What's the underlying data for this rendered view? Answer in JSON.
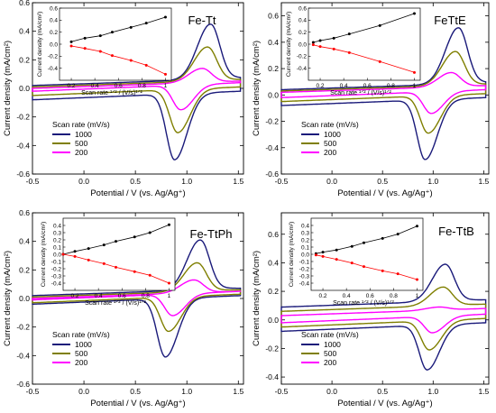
{
  "figure": {
    "colors": {
      "c1000": "#1a1a7a",
      "c500": "#7f7f00",
      "c200": "#ff00ff",
      "inset_black": "#000000",
      "inset_red": "#ff0000"
    }
  },
  "chart_data": [
    {
      "type": "line",
      "title": "Fe-Tt",
      "xlabel": "Potential / V (vs. Ag/Ag⁺)",
      "ylabel": "Current density (mA/cm²)",
      "xlim": [
        -0.5,
        1.55
      ],
      "ylim": [
        -0.6,
        0.6
      ],
      "xticks": [
        "-0.5",
        "0.0",
        "0.5",
        "1.0",
        "1.5"
      ],
      "yticks": [
        "-0.6",
        "-0.4",
        "-0.2",
        "0.0",
        "0.2",
        "0.4",
        "0.6"
      ],
      "legend_title": "Scan rate (mV/s)",
      "legend_position": "bottom-left",
      "series": [
        {
          "name": "1000",
          "color": "#1a1a7a",
          "base_top": 0.02,
          "base_bot": -0.08,
          "anodic_peak": [
            1.23,
            0.45
          ],
          "cathodic_peak": [
            0.88,
            -0.5
          ]
        },
        {
          "name": "500",
          "color": "#7f7f00",
          "base_top": 0.01,
          "base_bot": -0.05,
          "anodic_peak": [
            1.2,
            0.29
          ],
          "cathodic_peak": [
            0.91,
            -0.31
          ]
        },
        {
          "name": "200",
          "color": "#ff00ff",
          "base_top": 0.0,
          "base_bot": -0.02,
          "anodic_peak": [
            1.15,
            0.14
          ],
          "cathodic_peak": [
            0.94,
            -0.15
          ]
        }
      ],
      "inset": {
        "xlabel": "Scan rate ¹ᐟ² / (V/s)¹ᐟ²",
        "ylabel": "Current density (mA/cm²)",
        "xlim": [
          0.1,
          1.05
        ],
        "ylim": [
          -0.6,
          0.6
        ],
        "xticks": [
          "0.2",
          "0.4",
          "0.6",
          "0.8",
          "1"
        ],
        "yticks": [
          "-0.4",
          "-0.2",
          "0.0",
          "0.2",
          "0.4",
          "0.6"
        ],
        "x": [
          0.2,
          0.316,
          0.447,
          0.548,
          0.707,
          0.837,
          1.0
        ],
        "anodic": [
          0.04,
          0.1,
          0.14,
          0.2,
          0.28,
          0.35,
          0.45
        ],
        "cathodic": [
          -0.03,
          -0.07,
          -0.12,
          -0.19,
          -0.27,
          -0.35,
          -0.5
        ]
      }
    },
    {
      "type": "line",
      "title": "FeTtE",
      "xlabel": "Potential / V (vs. Ag/Ag⁺)",
      "ylabel": "Current density (mA/cm²)",
      "xlim": [
        -0.5,
        1.55
      ],
      "ylim": [
        -0.6,
        0.7
      ],
      "xticks": [
        "-0.5",
        "0.0",
        "0.5",
        "1.0",
        "1.5"
      ],
      "yticks": [
        "-0.6",
        "-0.4",
        "-0.2",
        "0.0",
        "0.2",
        "0.4",
        "0.6"
      ],
      "legend_title": "Scan rate (mV/s)",
      "legend_position": "bottom-left",
      "series": [
        {
          "name": "1000",
          "color": "#1a1a7a",
          "base_top": 0.04,
          "base_bot": -0.08,
          "anodic_peak": [
            1.25,
            0.51
          ],
          "cathodic_peak": [
            0.92,
            -0.49
          ]
        },
        {
          "name": "500",
          "color": "#7f7f00",
          "base_top": 0.03,
          "base_bot": -0.05,
          "anodic_peak": [
            1.22,
            0.33
          ],
          "cathodic_peak": [
            0.95,
            -0.29
          ]
        },
        {
          "name": "200",
          "color": "#ff00ff",
          "base_top": 0.02,
          "base_bot": -0.02,
          "anodic_peak": [
            1.18,
            0.17
          ],
          "cathodic_peak": [
            0.98,
            -0.14
          ]
        }
      ],
      "inset": {
        "xlabel": "Scan rate ¹ᐟ² / (V/s)¹ᐟ²",
        "ylabel": "Current density (mA/cm²)",
        "xlim": [
          0.1,
          1.05
        ],
        "ylim": [
          -0.6,
          0.6
        ],
        "xticks": [
          "0.2",
          "0.4",
          "0.6",
          "0.8",
          "1"
        ],
        "yticks": [
          "-0.4",
          "-0.2",
          "0.0",
          "0.2",
          "0.4",
          "0.6"
        ],
        "x": [
          0.141,
          0.2,
          0.316,
          0.447,
          0.707,
          1.0
        ],
        "anodic": [
          0.03,
          0.06,
          0.1,
          0.17,
          0.31,
          0.51
        ],
        "cathodic": [
          -0.01,
          -0.04,
          -0.08,
          -0.14,
          -0.29,
          -0.47
        ]
      }
    },
    {
      "type": "line",
      "title": "Fe-TtPh",
      "xlabel": "Potential / V (vs. Ag/Ag⁺)",
      "ylabel": "Current density (mA/cm²)",
      "xlim": [
        -0.5,
        1.55
      ],
      "ylim": [
        -0.6,
        0.6
      ],
      "xticks": [
        "-0.5",
        "0.0",
        "0.5",
        "1.0",
        "1.5"
      ],
      "yticks": [
        "-0.6",
        "-0.4",
        "-0.2",
        "0.0",
        "0.2",
        "0.4",
        "0.6"
      ],
      "legend_title": "Scan rate (mV/s)",
      "legend_position": "bottom-left",
      "series": [
        {
          "name": "1000",
          "color": "#1a1a7a",
          "base_top": 0.02,
          "base_bot": -0.04,
          "anodic_peak": [
            1.13,
            0.41
          ],
          "cathodic_peak": [
            0.79,
            -0.41
          ]
        },
        {
          "name": "500",
          "color": "#7f7f00",
          "base_top": 0.01,
          "base_bot": -0.03,
          "anodic_peak": [
            1.1,
            0.25
          ],
          "cathodic_peak": [
            0.82,
            -0.23
          ]
        },
        {
          "name": "200",
          "color": "#ff00ff",
          "base_top": 0.0,
          "base_bot": -0.01,
          "anodic_peak": [
            1.07,
            0.13
          ],
          "cathodic_peak": [
            0.86,
            -0.12
          ]
        }
      ],
      "inset": {
        "xlabel": "Scan rate ¹ᐟ² / (V/s)¹ᐟ²",
        "ylabel": "Current density (mA/cm²)",
        "xlim": [
          0.1,
          1.05
        ],
        "ylim": [
          -0.5,
          0.5
        ],
        "xticks": [
          "0.2",
          "0.4",
          "0.6",
          "0.8",
          "1"
        ],
        "yticks": [
          "-0.4",
          "-0.3",
          "-0.2",
          "-0.1",
          "0.0",
          "0.1",
          "0.2",
          "0.3",
          "0.4"
        ],
        "x": [
          0.1,
          0.2,
          0.316,
          0.447,
          0.548,
          0.707,
          0.837,
          1.0
        ],
        "anodic": [
          0.0,
          0.04,
          0.08,
          0.13,
          0.18,
          0.24,
          0.3,
          0.41
        ],
        "cathodic": [
          0.0,
          -0.03,
          -0.08,
          -0.13,
          -0.18,
          -0.24,
          -0.29,
          -0.4
        ]
      }
    },
    {
      "type": "line",
      "title": "Fe-TtB",
      "xlabel": "Potential / V (vs. Ag/Ag⁺)",
      "ylabel": "Current density (mA/cm²)",
      "xlim": [
        -0.5,
        1.55
      ],
      "ylim": [
        -0.45,
        0.75
      ],
      "xticks": [
        "-0.5",
        "0.0",
        "0.5",
        "1.0",
        "1.5"
      ],
      "yticks": [
        "-0.4",
        "-0.2",
        "0.0",
        "0.2",
        "0.4",
        "0.6"
      ],
      "legend_title": "Scan rate (mV/s)",
      "legend_position": "bottom-left",
      "series": [
        {
          "name": "1000",
          "color": "#1a1a7a",
          "base_top": 0.09,
          "base_bot": -0.08,
          "anodic_peak": [
            1.12,
            0.39
          ],
          "cathodic_peak": [
            0.94,
            -0.35
          ]
        },
        {
          "name": "500",
          "color": "#7f7f00",
          "base_top": 0.06,
          "base_bot": -0.05,
          "anodic_peak": [
            1.1,
            0.23
          ],
          "cathodic_peak": [
            0.96,
            -0.21
          ]
        },
        {
          "name": "200",
          "color": "#ff00ff",
          "base_top": 0.03,
          "base_bot": -0.02,
          "anodic_peak": [
            1.07,
            0.09
          ],
          "cathodic_peak": [
            0.99,
            -0.09
          ]
        }
      ],
      "inset": {
        "xlabel": "Scan rate ¹ᐟ² / (V/s)¹ᐟ²",
        "ylabel": "Current density (mA/cm²)",
        "xlim": [
          0.1,
          1.05
        ],
        "ylim": [
          -0.5,
          0.5
        ],
        "xticks": [
          "0.2",
          "0.4",
          "0.6",
          "0.8",
          "1"
        ],
        "yticks": [
          "-0.4",
          "-0.3",
          "-0.2",
          "-0.1",
          "0.0",
          "0.1",
          "0.2",
          "0.3",
          "0.4"
        ],
        "x": [
          0.141,
          0.2,
          0.316,
          0.447,
          0.548,
          0.707,
          0.837,
          1.0
        ],
        "anodic": [
          0.01,
          0.03,
          0.06,
          0.11,
          0.16,
          0.22,
          0.28,
          0.39
        ],
        "cathodic": [
          -0.01,
          -0.03,
          -0.07,
          -0.12,
          -0.17,
          -0.23,
          -0.27,
          -0.35
        ]
      }
    }
  ]
}
